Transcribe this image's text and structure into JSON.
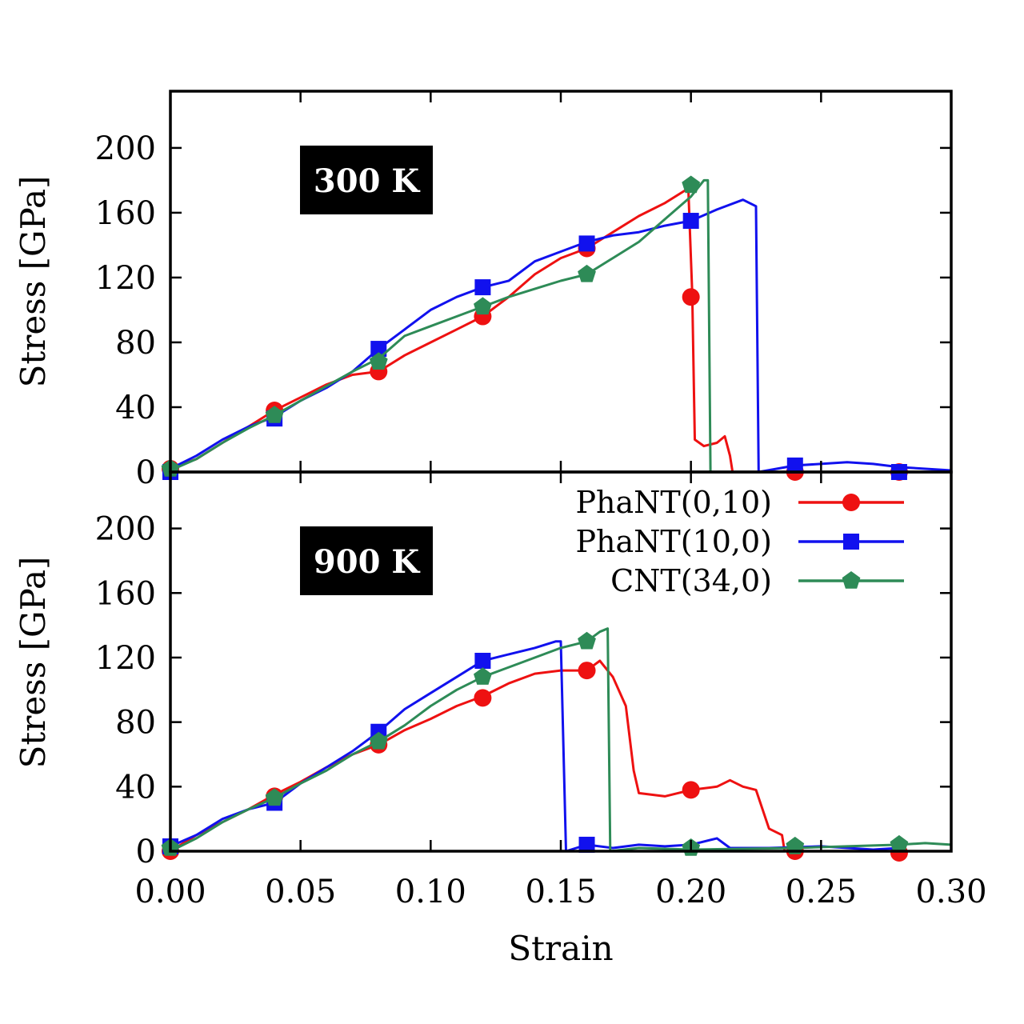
{
  "chart_data": {
    "type": "line",
    "xlabel": "Strain",
    "xlim": [
      0,
      0.3
    ],
    "xticks": [
      0.0,
      0.05,
      0.1,
      0.15,
      0.2,
      0.25,
      0.3
    ],
    "xtick_labels": [
      "0.00",
      "0.05",
      "0.10",
      "0.15",
      "0.20",
      "0.25",
      "0.30"
    ],
    "yticks": [
      0,
      40,
      80,
      120,
      160,
      200
    ],
    "yticks_labels": [
      "0",
      "40",
      "80",
      "120",
      "160",
      "200"
    ],
    "legend": {
      "placement": "top-right of lower panel",
      "entries": [
        {
          "name": "PhaNT(0,10)",
          "color": "#ee1111",
          "marker": "circle"
        },
        {
          "name": "PhaNT(10,0)",
          "color": "#1111ee",
          "marker": "square"
        },
        {
          "name": "CNT(34,0)",
          "color": "#2e8b57",
          "marker": "pentagon"
        }
      ]
    },
    "panels": [
      {
        "label": "300 K",
        "ylabel": "Stress [GPa]",
        "ylim": [
          0,
          235
        ],
        "series": [
          {
            "name": "PhaNT(0,10)",
            "color": "#ee1111",
            "points": [
              [
                0,
                2
              ],
              [
                0.01,
                8
              ],
              [
                0.02,
                18
              ],
              [
                0.03,
                28
              ],
              [
                0.04,
                38
              ],
              [
                0.05,
                46
              ],
              [
                0.06,
                54
              ],
              [
                0.07,
                60
              ],
              [
                0.08,
                62
              ],
              [
                0.09,
                72
              ],
              [
                0.1,
                80
              ],
              [
                0.11,
                88
              ],
              [
                0.12,
                96
              ],
              [
                0.13,
                108
              ],
              [
                0.14,
                122
              ],
              [
                0.15,
                132
              ],
              [
                0.16,
                138
              ],
              [
                0.17,
                148
              ],
              [
                0.18,
                158
              ],
              [
                0.19,
                166
              ],
              [
                0.199,
                175
              ],
              [
                0.2005,
                110
              ],
              [
                0.2015,
                20
              ],
              [
                0.205,
                16
              ],
              [
                0.21,
                18
              ],
              [
                0.213,
                22
              ],
              [
                0.215,
                10
              ],
              [
                0.216,
                0
              ],
              [
                0.23,
                0
              ]
            ],
            "markers": [
              [
                0,
                2
              ],
              [
                0.04,
                38
              ],
              [
                0.08,
                62
              ],
              [
                0.12,
                96
              ],
              [
                0.16,
                138
              ],
              [
                0.2,
                108
              ],
              [
                0.24,
                0
              ],
              [
                0.28,
                0
              ]
            ]
          },
          {
            "name": "PhaNT(10,0)",
            "color": "#1111ee",
            "points": [
              [
                0,
                2
              ],
              [
                0.01,
                10
              ],
              [
                0.02,
                20
              ],
              [
                0.03,
                28
              ],
              [
                0.04,
                34
              ],
              [
                0.05,
                44
              ],
              [
                0.06,
                52
              ],
              [
                0.07,
                62
              ],
              [
                0.08,
                76
              ],
              [
                0.09,
                88
              ],
              [
                0.1,
                100
              ],
              [
                0.11,
                108
              ],
              [
                0.12,
                114
              ],
              [
                0.13,
                118
              ],
              [
                0.14,
                130
              ],
              [
                0.15,
                136
              ],
              [
                0.16,
                142
              ],
              [
                0.17,
                146
              ],
              [
                0.18,
                148
              ],
              [
                0.19,
                152
              ],
              [
                0.2,
                155
              ],
              [
                0.21,
                162
              ],
              [
                0.22,
                168
              ],
              [
                0.225,
                164
              ],
              [
                0.226,
                0
              ],
              [
                0.24,
                4
              ],
              [
                0.26,
                6
              ],
              [
                0.27,
                5
              ],
              [
                0.28,
                3
              ],
              [
                0.3,
                1
              ]
            ],
            "markers": [
              [
                0,
                0
              ],
              [
                0.04,
                33
              ],
              [
                0.08,
                76
              ],
              [
                0.12,
                114
              ],
              [
                0.16,
                141
              ],
              [
                0.2,
                155
              ],
              [
                0.24,
                4
              ],
              [
                0.28,
                0
              ]
            ]
          },
          {
            "name": "CNT(34,0)",
            "color": "#2e8b57",
            "points": [
              [
                0,
                1
              ],
              [
                0.01,
                8
              ],
              [
                0.02,
                18
              ],
              [
                0.03,
                27
              ],
              [
                0.04,
                35
              ],
              [
                0.05,
                44
              ],
              [
                0.06,
                53
              ],
              [
                0.07,
                62
              ],
              [
                0.08,
                70
              ],
              [
                0.09,
                84
              ],
              [
                0.1,
                90
              ],
              [
                0.11,
                96
              ],
              [
                0.12,
                102
              ],
              [
                0.13,
                108
              ],
              [
                0.14,
                113
              ],
              [
                0.15,
                118
              ],
              [
                0.16,
                122
              ],
              [
                0.17,
                132
              ],
              [
                0.18,
                142
              ],
              [
                0.19,
                156
              ],
              [
                0.2,
                170
              ],
              [
                0.205,
                180
              ],
              [
                0.2065,
                180
              ],
              [
                0.2075,
                0
              ],
              [
                0.22,
                0
              ]
            ],
            "markers": [
              [
                0,
                2
              ],
              [
                0.04,
                35
              ],
              [
                0.08,
                68
              ],
              [
                0.12,
                102
              ],
              [
                0.16,
                122
              ],
              [
                0.2,
                177
              ]
            ]
          }
        ]
      },
      {
        "label": "900 K",
        "ylabel": "Stress [GPa]",
        "ylim": [
          0,
          235
        ],
        "series": [
          {
            "name": "PhaNT(0,10)",
            "color": "#ee1111",
            "points": [
              [
                0,
                0
              ],
              [
                0.01,
                10
              ],
              [
                0.02,
                18
              ],
              [
                0.03,
                26
              ],
              [
                0.04,
                35
              ],
              [
                0.05,
                43
              ],
              [
                0.06,
                52
              ],
              [
                0.07,
                60
              ],
              [
                0.08,
                66
              ],
              [
                0.09,
                75
              ],
              [
                0.1,
                82
              ],
              [
                0.11,
                90
              ],
              [
                0.12,
                96
              ],
              [
                0.13,
                104
              ],
              [
                0.14,
                110
              ],
              [
                0.15,
                112
              ],
              [
                0.16,
                112
              ],
              [
                0.165,
                118
              ],
              [
                0.17,
                108
              ],
              [
                0.175,
                90
              ],
              [
                0.178,
                50
              ],
              [
                0.18,
                36
              ],
              [
                0.19,
                34
              ],
              [
                0.2,
                38
              ],
              [
                0.21,
                40
              ],
              [
                0.215,
                44
              ],
              [
                0.22,
                40
              ],
              [
                0.225,
                38
              ],
              [
                0.23,
                14
              ],
              [
                0.235,
                10
              ],
              [
                0.236,
                0
              ],
              [
                0.25,
                0
              ],
              [
                0.28,
                0
              ]
            ],
            "markers": [
              [
                0,
                0
              ],
              [
                0.04,
                34
              ],
              [
                0.08,
                66
              ],
              [
                0.12,
                95
              ],
              [
                0.16,
                112
              ],
              [
                0.2,
                38
              ],
              [
                0.24,
                0
              ],
              [
                0.28,
                -1
              ]
            ]
          },
          {
            "name": "PhaNT(10,0)",
            "color": "#1111ee",
            "points": [
              [
                0,
                3
              ],
              [
                0.01,
                10
              ],
              [
                0.02,
                20
              ],
              [
                0.03,
                26
              ],
              [
                0.04,
                30
              ],
              [
                0.05,
                42
              ],
              [
                0.06,
                52
              ],
              [
                0.07,
                62
              ],
              [
                0.08,
                74
              ],
              [
                0.09,
                88
              ],
              [
                0.1,
                98
              ],
              [
                0.11,
                108
              ],
              [
                0.12,
                118
              ],
              [
                0.13,
                122
              ],
              [
                0.14,
                126
              ],
              [
                0.148,
                130
              ],
              [
                0.15,
                130
              ],
              [
                0.152,
                0
              ],
              [
                0.16,
                4
              ],
              [
                0.17,
                2
              ],
              [
                0.18,
                4
              ],
              [
                0.19,
                3
              ],
              [
                0.2,
                4
              ],
              [
                0.21,
                8
              ],
              [
                0.215,
                2
              ],
              [
                0.23,
                2
              ],
              [
                0.25,
                3
              ],
              [
                0.27,
                1
              ],
              [
                0.28,
                2
              ]
            ],
            "markers": [
              [
                0,
                3
              ],
              [
                0.04,
                30
              ],
              [
                0.08,
                74
              ],
              [
                0.12,
                118
              ],
              [
                0.16,
                4
              ]
            ]
          },
          {
            "name": "CNT(34,0)",
            "color": "#2e8b57",
            "points": [
              [
                0,
                0
              ],
              [
                0.01,
                8
              ],
              [
                0.02,
                18
              ],
              [
                0.03,
                26
              ],
              [
                0.04,
                33
              ],
              [
                0.05,
                42
              ],
              [
                0.06,
                50
              ],
              [
                0.07,
                60
              ],
              [
                0.08,
                68
              ],
              [
                0.09,
                78
              ],
              [
                0.1,
                90
              ],
              [
                0.11,
                100
              ],
              [
                0.12,
                108
              ],
              [
                0.13,
                114
              ],
              [
                0.14,
                120
              ],
              [
                0.15,
                126
              ],
              [
                0.16,
                130
              ],
              [
                0.165,
                136
              ],
              [
                0.168,
                138
              ],
              [
                0.169,
                0
              ],
              [
                0.18,
                2
              ],
              [
                0.2,
                1
              ],
              [
                0.24,
                2
              ],
              [
                0.26,
                3
              ],
              [
                0.28,
                4
              ],
              [
                0.29,
                5
              ],
              [
                0.3,
                4
              ]
            ],
            "markers": [
              [
                0,
                2
              ],
              [
                0.04,
                33
              ],
              [
                0.08,
                68
              ],
              [
                0.12,
                108
              ],
              [
                0.16,
                130
              ],
              [
                0.2,
                2
              ],
              [
                0.24,
                3
              ],
              [
                0.28,
                4
              ]
            ]
          }
        ]
      }
    ]
  }
}
